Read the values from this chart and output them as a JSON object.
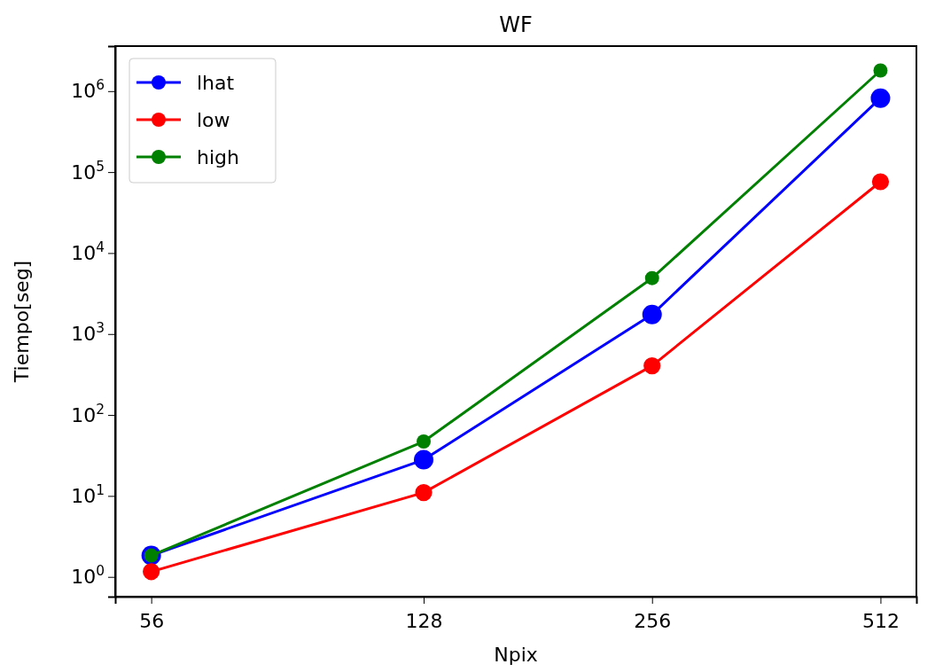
{
  "chart_data": {
    "type": "line",
    "title": "WF",
    "xlabel": "Npix",
    "ylabel": "Tiempo[seg]",
    "log": "xy",
    "x": [
      56,
      128,
      256,
      512
    ],
    "xlim": [
      50.2,
      571
    ],
    "xticks": [
      56,
      128,
      256,
      512
    ],
    "ylim": [
      0.57,
      3600000
    ],
    "yticks": [
      {
        "value": 1,
        "label": "10$^{0}$"
      },
      {
        "value": 10,
        "label": "10$^{1}$"
      },
      {
        "value": 100,
        "label": "10$^{2}$"
      },
      {
        "value": 1000,
        "label": "10$^{3}$"
      },
      {
        "value": 10000,
        "label": "10$^{4}$"
      },
      {
        "value": 100000,
        "label": "10$^{5}$"
      },
      {
        "value": 1000000,
        "label": "10$^{6}$"
      }
    ],
    "legend": "top left",
    "marker": "circle",
    "grid": false,
    "series": [
      {
        "name": "lhat",
        "color": "#0000ff",
        "values": [
          1.84,
          28,
          1740,
          820000
        ]
      },
      {
        "name": "low",
        "color": "#ff0000",
        "values": [
          1.16,
          11,
          405,
          76000
        ]
      },
      {
        "name": "high",
        "color": "#008000",
        "values": [
          1.84,
          47,
          4900,
          1800000
        ]
      }
    ]
  }
}
